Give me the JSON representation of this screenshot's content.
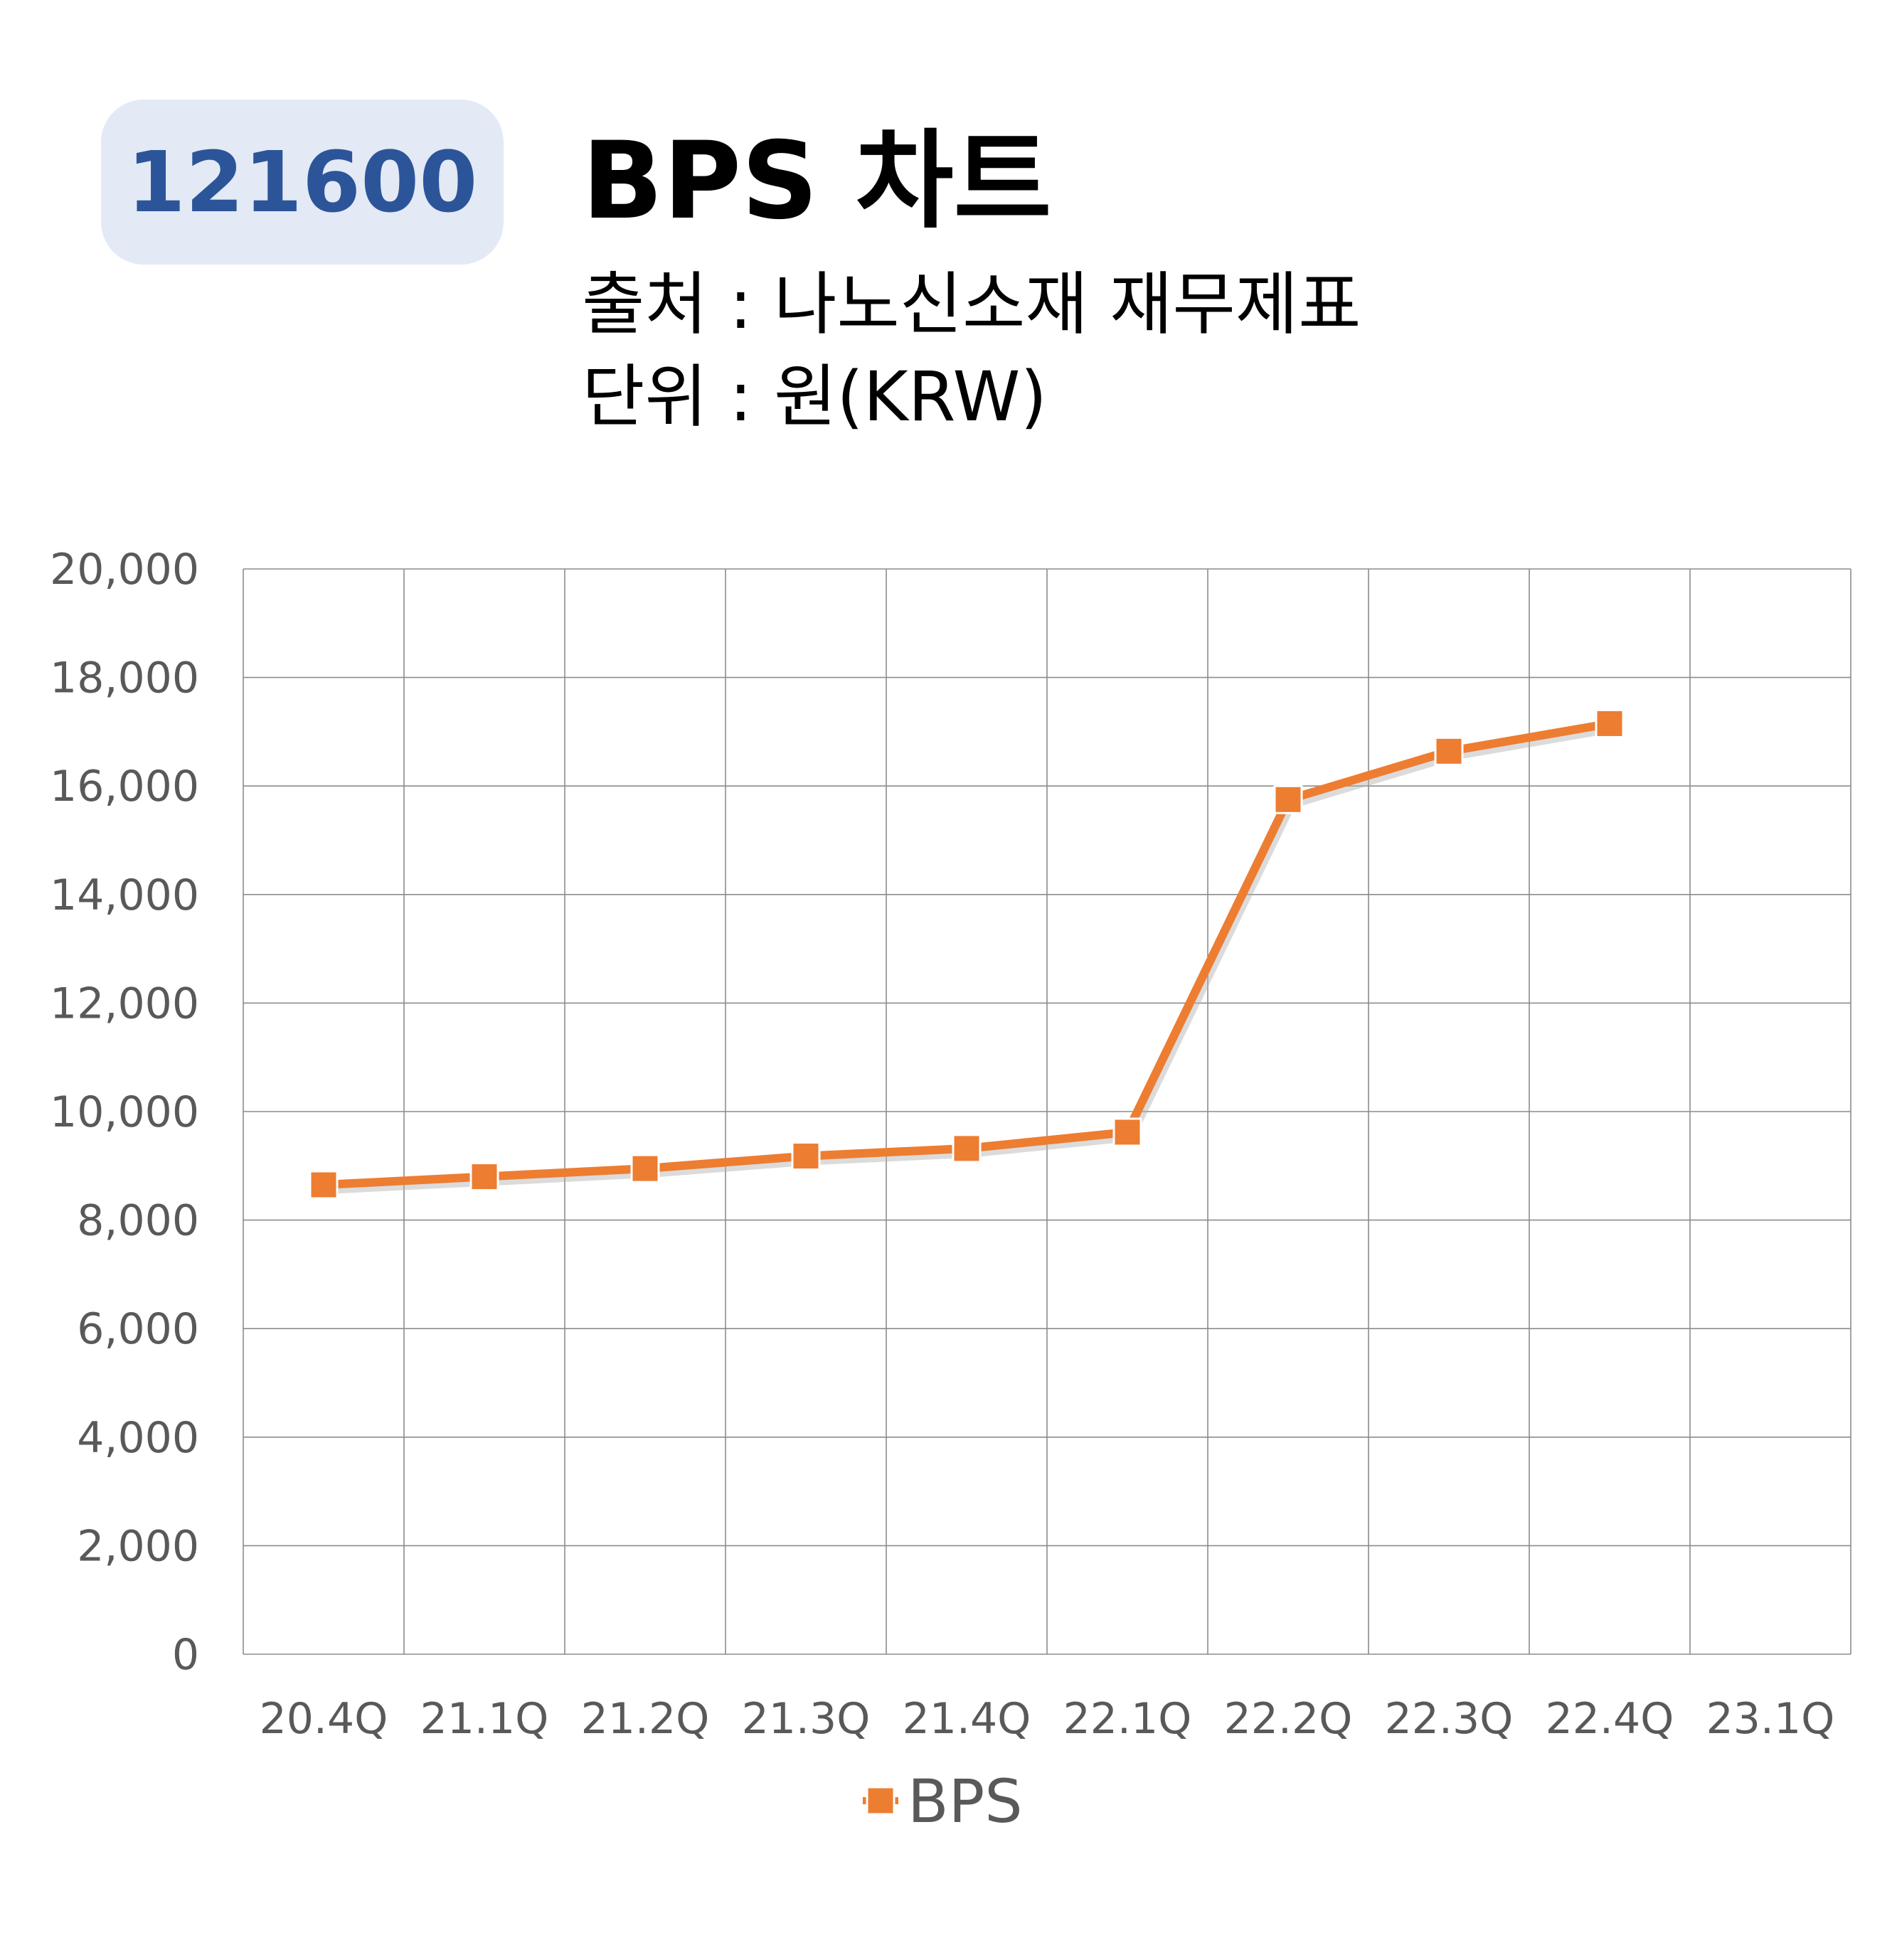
{
  "badge": "121600",
  "title": "BPS 차트",
  "subtitle_source": "출처 : 나노신소재 재무제표",
  "subtitle_unit": "단위 : 원(KRW)",
  "colors": {
    "series": "#ed7d31",
    "badge_bg": "#e3e9f5",
    "badge_text": "#2c5599",
    "grid": "#8c8c8c",
    "tick": "#595959"
  },
  "chart_data": {
    "type": "line",
    "categories": [
      "20.4Q",
      "21.1Q",
      "21.2Q",
      "21.3Q",
      "21.4Q",
      "22.1Q",
      "22.2Q",
      "22.3Q",
      "22.4Q",
      "23.1Q"
    ],
    "series": [
      {
        "name": "BPS",
        "values": [
          8650,
          8800,
          8950,
          9180,
          9320,
          9620,
          15750,
          16640,
          17150,
          null
        ]
      }
    ],
    "ylim": [
      0,
      20000
    ],
    "yticks": [
      "0",
      "2,000",
      "4,000",
      "6,000",
      "8,000",
      "10,000",
      "12,000",
      "14,000",
      "16,000",
      "18,000",
      "20,000"
    ],
    "ytick_values": [
      0,
      2000,
      4000,
      6000,
      8000,
      10000,
      12000,
      14000,
      16000,
      18000,
      20000
    ],
    "grid": true,
    "legend_position": "bottom",
    "marker": "square"
  }
}
